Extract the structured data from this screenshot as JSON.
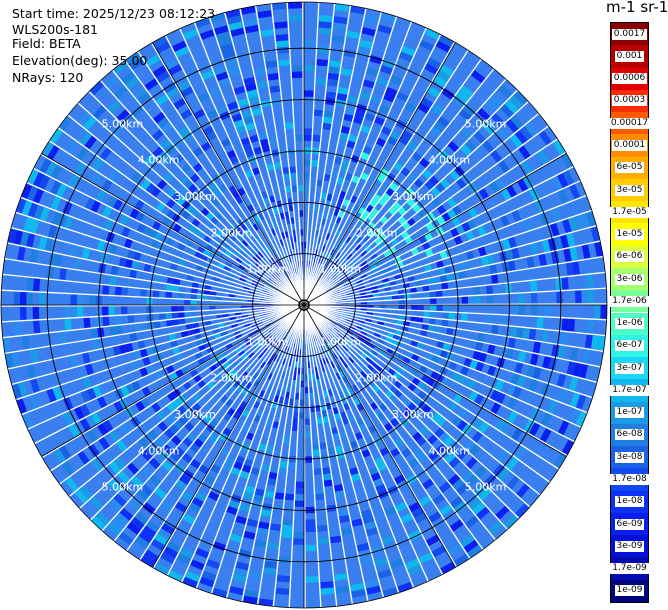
{
  "header": {
    "start_time": "Start time: 2025/12/23 08:12:23",
    "instrument": "WLS200s-181",
    "field": "Field: BETA",
    "elevation": "Elevation(deg): 35.00",
    "nrays": "NRays: 120"
  },
  "map": {
    "range_ring_labels": [
      "1.00km",
      "2.00km",
      "3.00km",
      "4.00km",
      "5.00km"
    ],
    "max_range_km": 5.9,
    "background_color": "#3a7ff0"
  },
  "colorbar": {
    "title": "m-1 sr-1",
    "labels": [
      "0.0017",
      "0.001",
      "0.0006",
      "0.0003",
      "0.00017",
      "0.0001",
      "6e-05",
      "3e-05",
      "1.7e-05",
      "1e-05",
      "6e-06",
      "3e-06",
      "1.7e-06",
      "1e-06",
      "6e-07",
      "3e-07",
      "1.7e-07",
      "1e-07",
      "6e-08",
      "3e-08",
      "1.7e-08",
      "1e-08",
      "6e-09",
      "3e-09",
      "1.7e-09",
      "1e-09"
    ],
    "colors": [
      "#8b0000",
      "#b80000",
      "#e00000",
      "#ff2a00",
      "#ff5a00",
      "#ff8c00",
      "#ffad00",
      "#ffcc00",
      "#ffe600",
      "#ffff00",
      "#d9ff3f",
      "#a8ff6e",
      "#78ff9a",
      "#4dffc4",
      "#2ef5e6",
      "#1ad8f5",
      "#10b8f0",
      "#1a9be6",
      "#1f7fe0",
      "#1a62e6",
      "#1448f0",
      "#0f30f5",
      "#0a1ef0",
      "#0510d8",
      "#020ab0",
      "#00057e"
    ]
  }
}
